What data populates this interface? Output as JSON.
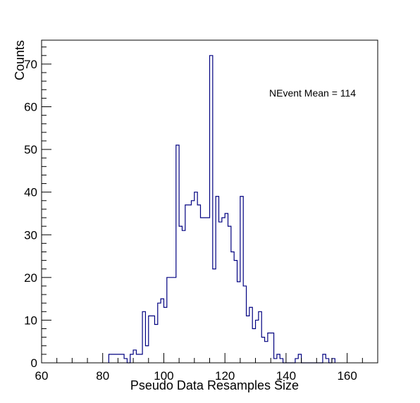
{
  "chart_data": {
    "type": "bar",
    "style": "step-histogram",
    "title": "",
    "xlabel": "Pseudo Data Resamples Size",
    "ylabel": "Counts",
    "annotation": "NEvent Mean = 114",
    "xlim": [
      60,
      170
    ],
    "ylim": [
      0,
      75.6
    ],
    "bin_width": 1,
    "x_ticks": [
      60,
      80,
      100,
      120,
      140,
      160
    ],
    "y_ticks": [
      0,
      10,
      20,
      30,
      40,
      50,
      60,
      70
    ],
    "line_color": "#000080",
    "grid": false,
    "bins": [
      {
        "x": 82,
        "y": 2
      },
      {
        "x": 83,
        "y": 2
      },
      {
        "x": 84,
        "y": 2
      },
      {
        "x": 85,
        "y": 2
      },
      {
        "x": 86,
        "y": 2
      },
      {
        "x": 87,
        "y": 1
      },
      {
        "x": 88,
        "y": 0
      },
      {
        "x": 89,
        "y": 2
      },
      {
        "x": 90,
        "y": 3
      },
      {
        "x": 91,
        "y": 2
      },
      {
        "x": 92,
        "y": 2
      },
      {
        "x": 93,
        "y": 12
      },
      {
        "x": 94,
        "y": 4
      },
      {
        "x": 95,
        "y": 11
      },
      {
        "x": 96,
        "y": 11
      },
      {
        "x": 97,
        "y": 9
      },
      {
        "x": 98,
        "y": 14
      },
      {
        "x": 99,
        "y": 15
      },
      {
        "x": 100,
        "y": 13
      },
      {
        "x": 101,
        "y": 20
      },
      {
        "x": 102,
        "y": 20
      },
      {
        "x": 103,
        "y": 20
      },
      {
        "x": 104,
        "y": 51
      },
      {
        "x": 105,
        "y": 32
      },
      {
        "x": 106,
        "y": 31
      },
      {
        "x": 107,
        "y": 37
      },
      {
        "x": 108,
        "y": 37
      },
      {
        "x": 109,
        "y": 38
      },
      {
        "x": 110,
        "y": 40
      },
      {
        "x": 111,
        "y": 37
      },
      {
        "x": 112,
        "y": 34
      },
      {
        "x": 113,
        "y": 34
      },
      {
        "x": 114,
        "y": 34
      },
      {
        "x": 115,
        "y": 72
      },
      {
        "x": 116,
        "y": 22
      },
      {
        "x": 117,
        "y": 39
      },
      {
        "x": 118,
        "y": 33
      },
      {
        "x": 119,
        "y": 34
      },
      {
        "x": 120,
        "y": 35
      },
      {
        "x": 121,
        "y": 32
      },
      {
        "x": 122,
        "y": 26
      },
      {
        "x": 123,
        "y": 24
      },
      {
        "x": 124,
        "y": 19
      },
      {
        "x": 125,
        "y": 39
      },
      {
        "x": 126,
        "y": 18
      },
      {
        "x": 127,
        "y": 11
      },
      {
        "x": 128,
        "y": 13
      },
      {
        "x": 129,
        "y": 8
      },
      {
        "x": 130,
        "y": 10
      },
      {
        "x": 131,
        "y": 12
      },
      {
        "x": 132,
        "y": 6
      },
      {
        "x": 133,
        "y": 5
      },
      {
        "x": 134,
        "y": 7
      },
      {
        "x": 135,
        "y": 7
      },
      {
        "x": 136,
        "y": 1
      },
      {
        "x": 137,
        "y": 2
      },
      {
        "x": 138,
        "y": 1
      },
      {
        "x": 139,
        "y": 0
      },
      {
        "x": 140,
        "y": 0
      },
      {
        "x": 141,
        "y": 0
      },
      {
        "x": 142,
        "y": 0
      },
      {
        "x": 143,
        "y": 1
      },
      {
        "x": 144,
        "y": 2
      },
      {
        "x": 145,
        "y": 0
      },
      {
        "x": 146,
        "y": 0
      },
      {
        "x": 147,
        "y": 0
      },
      {
        "x": 148,
        "y": 0
      },
      {
        "x": 149,
        "y": 0
      },
      {
        "x": 150,
        "y": 0
      },
      {
        "x": 151,
        "y": 0
      },
      {
        "x": 152,
        "y": 2
      },
      {
        "x": 153,
        "y": 1
      },
      {
        "x": 154,
        "y": 0
      },
      {
        "x": 155,
        "y": 1
      }
    ]
  }
}
